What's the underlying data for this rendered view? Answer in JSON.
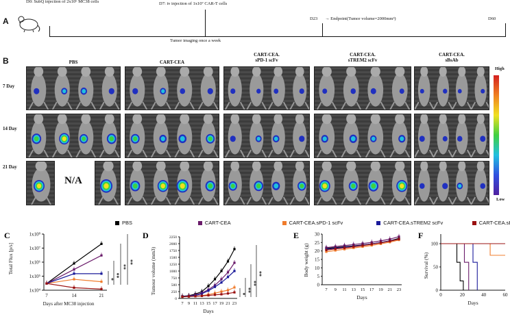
{
  "panelA": {
    "letter": "A",
    "d0": "D0: SubQ injection of 2x10⁶ MC38 cells",
    "d7": "D7: iv injection of 1x10⁷ CAR-T cells",
    "imaging": "Tumor imaging once a week",
    "d23": "D23",
    "endpoint": "→ Endpoint(Tumor volume=2000mm³)",
    "d60": "D60"
  },
  "panelB": {
    "letter": "B",
    "groups": [
      "PBS",
      "CART-CEA",
      "CART-CEA.\nsPD-1 scFv",
      "CART-CEA.\nsTREM2 scFv",
      "CART-CEA.\nsBsAb"
    ],
    "rows": [
      "7 Day",
      "14 Day",
      "21 Day"
    ],
    "na": "N/A",
    "scale_high": "High",
    "scale_low": "Low"
  },
  "legend": [
    {
      "name": "PBS",
      "color": "#000000"
    },
    {
      "name": "CART-CEA",
      "color": "#6a1b6a"
    },
    {
      "name": "CART-CEA.sPD-1 scFv",
      "color": "#f07c2c"
    },
    {
      "name": "CART-CEA.sTREM2 scFv",
      "color": "#1a1a9a"
    },
    {
      "name": "CART-CEA.sBsAb",
      "color": "#9a1010"
    }
  ],
  "chart_data": [
    {
      "panel": "C",
      "type": "line",
      "ylabel": "Total Flux [p/s]",
      "xlabel": "Days after MC38 injection",
      "x": [
        7,
        14,
        21
      ],
      "yscale": "log",
      "yticks": [
        "1x10⁴",
        "1x10⁵",
        "1x10⁶",
        "1x10⁷",
        "1x10⁸"
      ],
      "ylim": [
        10000,
        100000000
      ],
      "series": [
        {
          "name": "PBS",
          "values": [
            30000,
            800000,
            20000000
          ]
        },
        {
          "name": "CART-CEA",
          "values": [
            30000,
            300000,
            3000000
          ]
        },
        {
          "name": "CART-CEA.sPD-1 scFv",
          "values": [
            30000,
            60000,
            40000
          ]
        },
        {
          "name": "CART-CEA.sTREM2 scFv",
          "values": [
            30000,
            150000,
            150000
          ]
        },
        {
          "name": "CART-CEA.sBsAb",
          "values": [
            30000,
            15000,
            12000
          ]
        }
      ],
      "significance": [
        "*",
        "**",
        "**",
        "**"
      ]
    },
    {
      "panel": "D",
      "type": "line",
      "ylabel": "Tumour volume (mm3)",
      "xlabel": "Days",
      "x": [
        7,
        9,
        11,
        13,
        15,
        17,
        19,
        21,
        23
      ],
      "yticks": [
        0,
        250,
        500,
        750,
        1000,
        1250,
        1500,
        1750,
        2000,
        2250
      ],
      "ylim": [
        0,
        2250
      ],
      "series": [
        {
          "name": "PBS",
          "values": [
            80,
            100,
            160,
            250,
            450,
            700,
            1000,
            1350,
            1800
          ]
        },
        {
          "name": "CART-CEA",
          "values": [
            70,
            90,
            130,
            200,
            320,
            480,
            700,
            950,
            1300
          ]
        },
        {
          "name": "CART-CEA.sPD-1 scFv",
          "values": [
            60,
            70,
            80,
            100,
            140,
            190,
            250,
            300,
            400
          ]
        },
        {
          "name": "CART-CEA.sTREM2 scFv",
          "values": [
            70,
            80,
            110,
            170,
            280,
            420,
            580,
            780,
            1000
          ]
        },
        {
          "name": "CART-CEA.sBsAb",
          "values": [
            60,
            70,
            80,
            90,
            110,
            130,
            150,
            180,
            220
          ]
        }
      ],
      "significance": [
        "*",
        "**",
        "**",
        "**"
      ]
    },
    {
      "panel": "E",
      "type": "line",
      "ylabel": "Body weight (g)",
      "xlabel": "Days",
      "x": [
        7,
        9,
        11,
        13,
        15,
        17,
        19,
        21,
        23
      ],
      "yticks": [
        0,
        5,
        10,
        15,
        20,
        25,
        30
      ],
      "ylim": [
        0,
        30
      ],
      "series": [
        {
          "name": "PBS",
          "values": [
            21.5,
            22,
            22.5,
            23,
            23.6,
            24.2,
            25,
            26,
            27.5
          ]
        },
        {
          "name": "CART-CEA",
          "values": [
            22,
            22.6,
            23.2,
            23.8,
            24.4,
            25.1,
            26,
            27,
            28.5
          ]
        },
        {
          "name": "CART-CEA.sPD-1 scFv",
          "values": [
            19.5,
            20.3,
            21,
            21.8,
            22.5,
            23.3,
            24.2,
            25.2,
            26.5
          ]
        },
        {
          "name": "CART-CEA.sTREM2 scFv",
          "values": [
            21,
            21.6,
            22.2,
            22.8,
            23.5,
            24.2,
            25,
            26,
            27
          ]
        },
        {
          "name": "CART-CEA.sBsAb",
          "values": [
            20.5,
            21.2,
            21.8,
            22.5,
            23.2,
            24,
            24.8,
            25.8,
            27
          ]
        }
      ]
    },
    {
      "panel": "F",
      "type": "line",
      "ylabel": "Survival (%)",
      "xlabel": "Days",
      "xticks": [
        0,
        20,
        40,
        60
      ],
      "yticks": [
        0,
        50,
        100
      ],
      "xlim": [
        0,
        60
      ],
      "ylim": [
        0,
        100
      ],
      "series": [
        {
          "name": "PBS",
          "steps": [
            [
              0,
              100
            ],
            [
              15,
              100
            ],
            [
              15,
              60
            ],
            [
              18,
              60
            ],
            [
              18,
              20
            ],
            [
              21,
              20
            ],
            [
              21,
              0
            ]
          ]
        },
        {
          "name": "CART-CEA",
          "steps": [
            [
              0,
              100
            ],
            [
              22,
              100
            ],
            [
              22,
              60
            ],
            [
              26,
              60
            ],
            [
              26,
              0
            ]
          ]
        },
        {
          "name": "CART-CEA.sPD-1 scFv",
          "steps": [
            [
              0,
              100
            ],
            [
              46,
              100
            ],
            [
              46,
              75
            ],
            [
              60,
              75
            ]
          ]
        },
        {
          "name": "CART-CEA.sTREM2 scFv",
          "steps": [
            [
              0,
              100
            ],
            [
              30,
              100
            ],
            [
              30,
              60
            ],
            [
              34,
              60
            ],
            [
              34,
              0
            ]
          ]
        },
        {
          "name": "CART-CEA.sBsAb",
          "steps": [
            [
              0,
              100
            ],
            [
              60,
              100
            ]
          ]
        }
      ]
    }
  ]
}
